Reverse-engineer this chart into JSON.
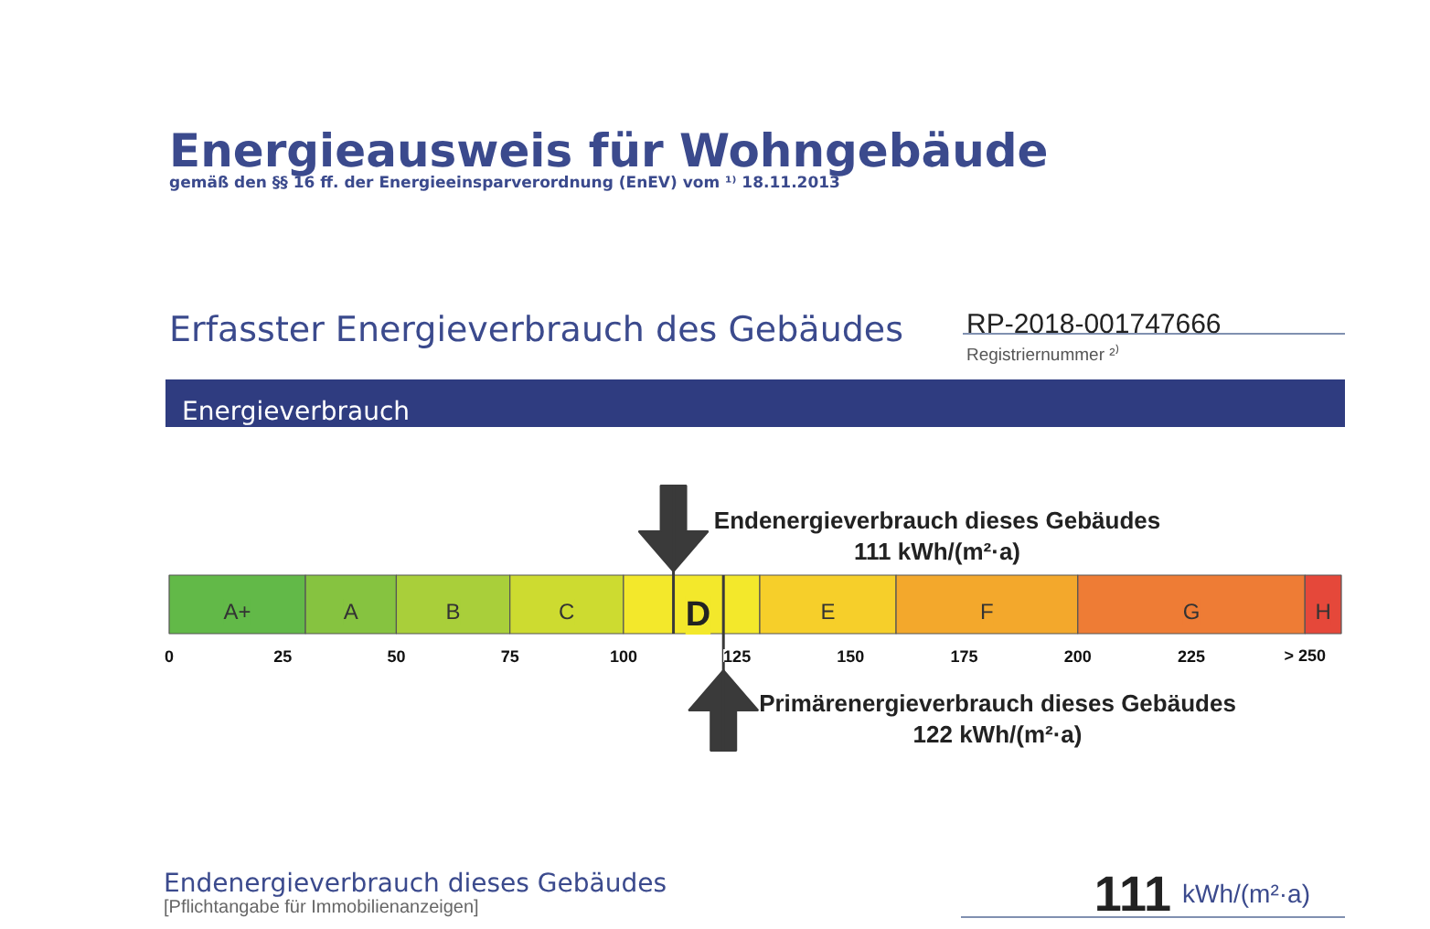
{
  "chart_data": {
    "type": "bar",
    "title": "Energieausweis für Wohngebäude",
    "subtitle": "gemäß den §§ 16 ff. der Energieeinsparverordnung (EnEV) vom ¹⁾ 18.11.2013",
    "orientation": "horizontal",
    "stacked": true,
    "categories": [
      null
    ],
    "series": [
      {
        "name": "A+",
        "color": "#62b948",
        "values": [
          30
        ]
      },
      {
        "name": "A",
        "color": "#86c340",
        "values": [
          20
        ]
      },
      {
        "name": "B",
        "color": "#a9cf3a",
        "values": [
          25
        ]
      },
      {
        "name": "C",
        "color": "#cddb30",
        "values": [
          25
        ]
      },
      {
        "name": "D",
        "color": "#f3e82b",
        "values": [
          30
        ]
      },
      {
        "name": "E",
        "color": "#f6cf2a",
        "values": [
          30
        ]
      },
      {
        "name": "F",
        "color": "#f3a82c",
        "values": [
          40
        ]
      },
      {
        "name": "G",
        "color": "#ee7c35",
        "values": [
          50
        ]
      },
      {
        "name": "H",
        "color": "#e5483a",
        "values": [
          8
        ]
      }
    ],
    "xlim": [
      0,
      258
    ],
    "xticks": [
      0,
      25,
      50,
      75,
      100,
      125,
      150,
      175,
      200,
      225,
      {
        "value": 250,
        "label": "> 250"
      }
    ],
    "ref_lines": [
      {
        "axis": "x",
        "value": 111,
        "label": "Endenergieverbrauch dieses Gebäudes\n111 kWh/(m²·a)"
      },
      {
        "axis": "x",
        "value": 122,
        "label": "Primärenergieverbrauch dieses Gebäudes\n122 kWh/(m²·a)"
      }
    ],
    "annotations": [
      "Erfasster Energieverbrauch des Gebäudes",
      "RP-2018-001747666",
      "Registriernummer ²⁾",
      "Energieverbrauch",
      "Endenergieverbrauch dieses Gebäudes",
      "[Pflichtangabe für Immobilienanzeigen]",
      "111 kWh/(m²·a)"
    ]
  }
}
